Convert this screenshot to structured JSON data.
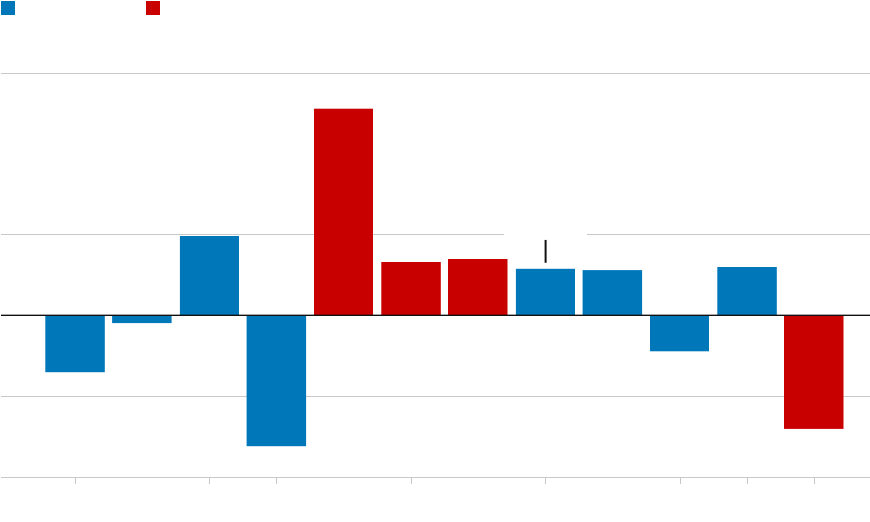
{
  "colors": {
    "blue": "#0077b8",
    "red": "#c80000",
    "grid": "#c8c8c8",
    "axis": "#111111",
    "annotation": "#111111",
    "background": "#ffffff"
  },
  "legend": {
    "position": "top-left",
    "items": [
      {
        "color_key": "blue"
      },
      {
        "color_key": "red"
      }
    ]
  },
  "chart_data": {
    "type": "bar",
    "ylim": [
      -1.0,
      1.5
    ],
    "yticks": [
      -1.0,
      -0.5,
      0,
      0.5,
      1.0,
      1.5
    ],
    "grid": true,
    "xticks_count": 12,
    "categories": [
      "",
      "",
      "",
      "",
      "",
      "",
      "",
      "",
      "",
      "",
      "",
      ""
    ],
    "bars": [
      {
        "value": -0.35,
        "color_key": "blue"
      },
      {
        "value": -0.05,
        "color_key": "blue"
      },
      {
        "value": 0.49,
        "color_key": "blue"
      },
      {
        "value": -0.81,
        "color_key": "blue"
      },
      {
        "value": 1.28,
        "color_key": "red"
      },
      {
        "value": 0.33,
        "color_key": "red"
      },
      {
        "value": 0.35,
        "color_key": "red"
      },
      {
        "value": 0.29,
        "color_key": "blue"
      },
      {
        "value": 0.28,
        "color_key": "blue"
      },
      {
        "value": -0.22,
        "color_key": "blue"
      },
      {
        "value": 0.3,
        "color_key": "blue"
      },
      {
        "value": -0.7,
        "color_key": "red"
      }
    ],
    "annotation": {
      "bar_index": 7,
      "value": 0.45,
      "text": ""
    }
  }
}
